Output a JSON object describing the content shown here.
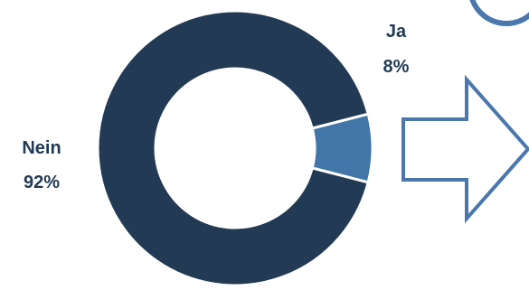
{
  "chart_data": {
    "type": "pie",
    "variant": "donut",
    "title": "",
    "categories": [
      "Nein",
      "Ja"
    ],
    "values": [
      92,
      8
    ],
    "labels": [
      {
        "category": "Nein",
        "percent": "92%"
      },
      {
        "category": "Ja",
        "percent": "8%"
      }
    ],
    "legend": "none",
    "grid": false
  },
  "colors": {
    "nein_slice": "#223a54",
    "ja_slice": "#4276a8",
    "label_text": "#223a54",
    "arrow_stroke": "#4a77ac",
    "arrow_fill": "#ffffff",
    "corner_circle": "#4a77ac",
    "slice_separator": "#ffffff"
  },
  "decorations": {
    "arrow_direction": "right",
    "corner_icon": "circle-outline-icon"
  }
}
